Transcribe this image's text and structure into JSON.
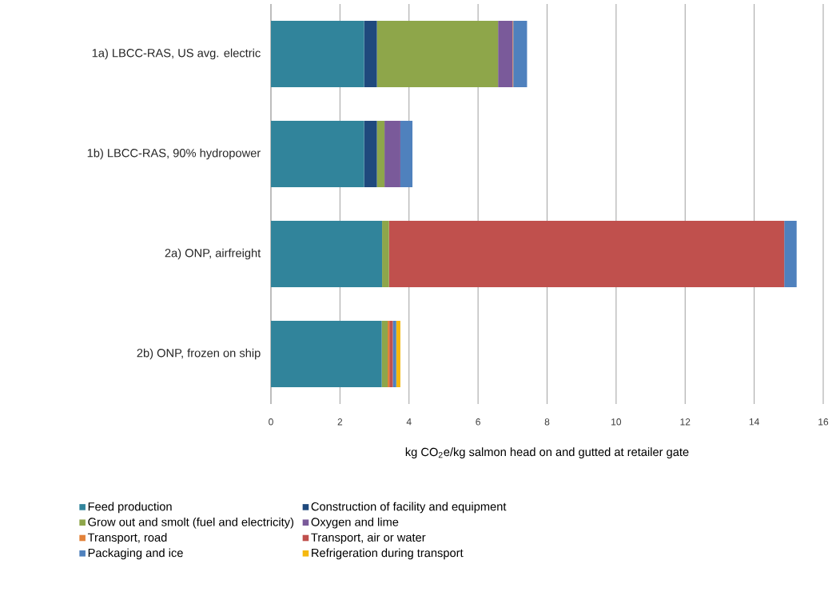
{
  "chart_data": {
    "type": "bar",
    "orientation": "horizontal",
    "stacked": true,
    "xlabel": "kg CO$_{2}$e/kg salmon head on and gutted at retailer gate",
    "categories": [
      "1a) LBCC-RAS, US avg. electric",
      "1b) LBCC-RAS, 90% hydropower",
      "2a) ONP, airfreight",
      "2b) ONP, frozen on ship"
    ],
    "series": [
      {
        "name": "Feed production",
        "color": "#31849b",
        "values": [
          2.7,
          2.7,
          3.22,
          3.21
        ]
      },
      {
        "name": "Construction of facility and equipment",
        "color": "#1f497d",
        "values": [
          0.37,
          0.37,
          0,
          0
        ]
      },
      {
        "name": "Grow out and smolt (fuel and electricity)",
        "color": "#8ea64a",
        "values": [
          3.51,
          0.22,
          0.2,
          0.17
        ]
      },
      {
        "name": "Oxygen and lime",
        "color": "#7a5a9a",
        "values": [
          0.42,
          0.46,
          0,
          0
        ]
      },
      {
        "name": "Transport, road",
        "color": "#e3823a",
        "values": [
          0.02,
          null,
          0,
          0.05
        ]
      },
      {
        "name": "Transport, air or water",
        "color": "#c0504d",
        "values": [
          0,
          0,
          11.45,
          0.1
        ]
      },
      {
        "name": "Packaging and ice",
        "color": "#4f81bd",
        "values": [
          0.4,
          0.35,
          0.36,
          0.1
        ]
      },
      {
        "name": "Refrigeration during transport",
        "color": "#f5b80f",
        "values": [
          0,
          0,
          0,
          0.12
        ]
      }
    ],
    "xlim": [
      0,
      16
    ],
    "xticks": [
      0,
      2,
      4,
      6,
      8,
      10,
      12,
      14,
      16
    ],
    "grid": "x",
    "legend": "bottom"
  }
}
